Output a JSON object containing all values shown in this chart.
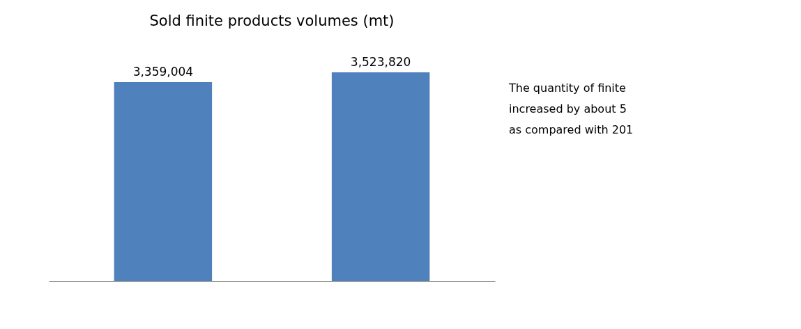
{
  "chart_data": {
    "type": "bar",
    "title": "Sold finite products volumes (mt)",
    "categories": [
      null,
      null
    ],
    "series": [
      {
        "color": "#4f81bd",
        "values": [
          3359004,
          3523820
        ],
        "value_labels": [
          "3,359,004",
          "3,523,820"
        ]
      }
    ],
    "annotations": [
      "The quantity of finite",
      "increased by about 5",
      "as compared with 201"
    ]
  }
}
